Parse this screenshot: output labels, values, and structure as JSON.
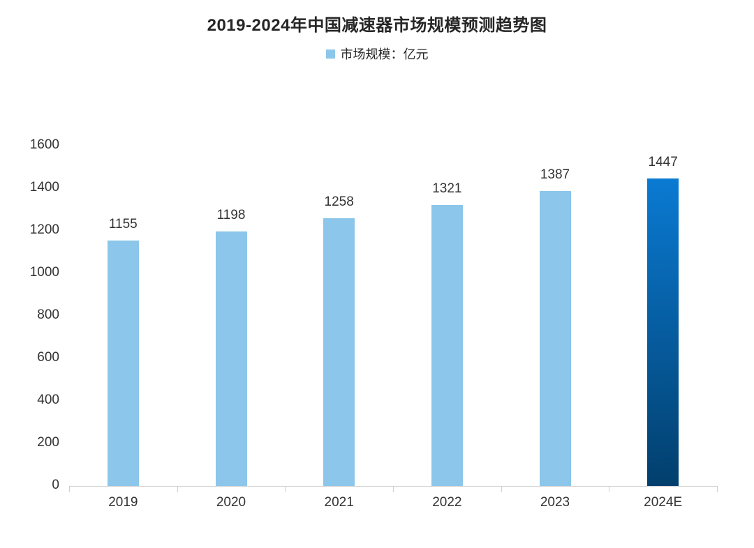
{
  "title": "2019-2024年中国减速器市场规模预测趋势图",
  "legend": {
    "label": "市场规模：亿元",
    "color": "#8cc6ea"
  },
  "colors": {
    "bar": "#8cc6ea",
    "highlight_top": "#0a7ad2",
    "highlight_bottom": "#023f6d",
    "axis": "#d0d0d0"
  },
  "chart_data": {
    "type": "bar",
    "title": "2019-2024年中国减速器市场规模预测趋势图",
    "xlabel": "",
    "ylabel": "",
    "categories": [
      "2019",
      "2020",
      "2021",
      "2022",
      "2023",
      "2024E"
    ],
    "series": [
      {
        "name": "市场规模：亿元",
        "values": [
          1155,
          1198,
          1258,
          1321,
          1387,
          1447
        ]
      }
    ],
    "ylim": [
      0,
      1600
    ],
    "yticks": [
      0,
      200,
      400,
      600,
      800,
      1000,
      1200,
      1400,
      1600
    ],
    "grid": false,
    "legend_position": "top",
    "data_labels": true,
    "highlighted_category": "2024E"
  }
}
